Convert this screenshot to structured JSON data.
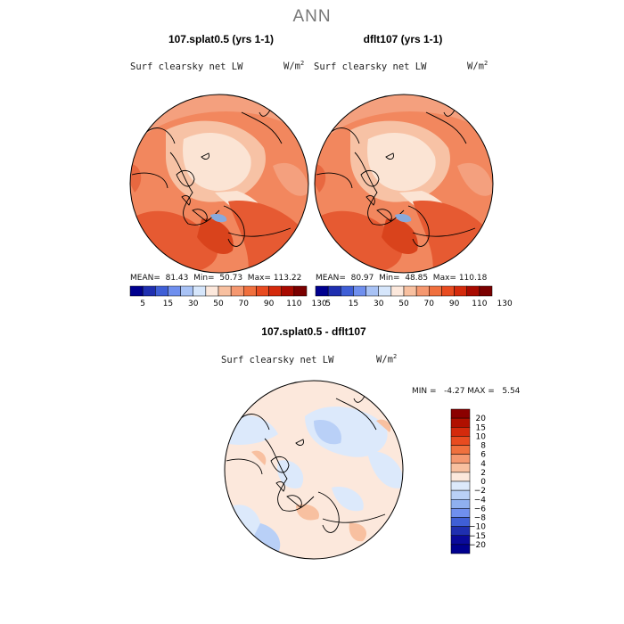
{
  "page_title": "ANN",
  "variable": "Surf clearsky net LW",
  "units_base": "W/m",
  "units_exp": "2",
  "panels": [
    {
      "title": "107.splat0.5 (yrs 1-1)",
      "mean_text": "MEAN=  81.43  Min=  50.73  Max= 113.22"
    },
    {
      "title": "dflt107 (yrs 1-1)",
      "mean_text": "MEAN=  80.97  Min=  48.85  Max= 110.18"
    }
  ],
  "diff_panel": {
    "title": "107.splat0.5 - dflt107",
    "minmax_text": "MIN =   -4.27 MAX =   5.54"
  },
  "colorbar_top": {
    "labels": [
      "5",
      "15",
      "30",
      "50",
      "70",
      "90",
      "110",
      "130"
    ],
    "colors": [
      "#00008f",
      "#1f2fb0",
      "#3f5fd6",
      "#6f8fee",
      "#a8c2f5",
      "#d6e6fb",
      "#fce8dc",
      "#f8c0a0",
      "#f59870",
      "#f0703e",
      "#e84b20",
      "#d42a0c",
      "#a80a00",
      "#7a0000"
    ]
  },
  "colorbar_diff": {
    "labels": [
      "20",
      "15",
      "10",
      "8",
      "6",
      "4",
      "2",
      "0",
      "−2",
      "−4",
      "−6",
      "−8",
      "−10",
      "−15",
      "−20"
    ],
    "colors": [
      "#8b0000",
      "#b01000",
      "#d42a0c",
      "#e84b20",
      "#f0703e",
      "#f59870",
      "#f8c0a0",
      "#fce8dc",
      "#dce9fb",
      "#b9d0f7",
      "#8fb0f0",
      "#6f8fee",
      "#3f5fd6",
      "#1f2fb0",
      "#0a0a9a",
      "#00008f"
    ]
  }
}
